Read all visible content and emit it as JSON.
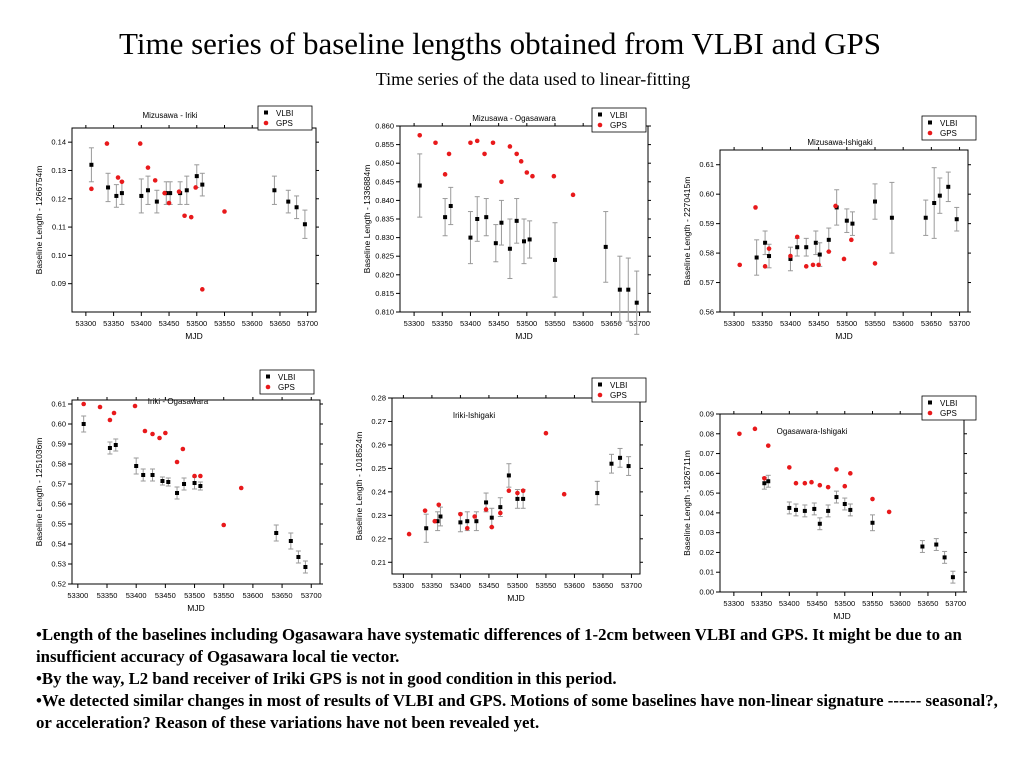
{
  "slide": {
    "title": "Time series of baseline lengths obtained from VLBI and GPS",
    "subtitle": "Time series of the data used to linear-fitting"
  },
  "bullets": [
    "•Length of the baselines including Ogasawara have systematic differences of 1-2cm between VLBI and GPS. It might be due to an insufficient accuracy of Ogasawara local tie vector.",
    "•By the way, L2 band receiver of Iriki GPS is not in good condition in this period.",
    "•We detected similar changes in most of results of VLBI and GPS. Motions of some baselines have non-linear signature ------ seasonal?, or acceleration? Reason of these variations have not been revealed yet."
  ],
  "colors": {
    "vlbi": "#000000",
    "gps": "#e8191b",
    "errorbar": "#9a9a9a"
  },
  "chart_data": [
    {
      "type": "scatter",
      "title": "Mizusawa - Iriki",
      "xlabel": "MJD",
      "ylabel": "Baseline Length - 1266754m",
      "xlim": [
        53275,
        53715
      ],
      "ylim": [
        0.08,
        0.145
      ],
      "xticks": [
        53300,
        53350,
        53400,
        53450,
        53500,
        53550,
        53600,
        53650,
        53700
      ],
      "yticks": [
        0.09,
        0.1,
        0.11,
        0.12,
        0.13,
        0.14
      ],
      "ytick_decimals": 2,
      "legend": [
        "VLBI",
        "GPS"
      ],
      "series": [
        {
          "name": "VLBI",
          "marker": "square",
          "x": [
            53310,
            53340,
            53355,
            53365,
            53400,
            53412,
            53428,
            53445,
            53452,
            53470,
            53482,
            53500,
            53510,
            53640,
            53665,
            53680,
            53695
          ],
          "y": [
            0.132,
            0.124,
            0.121,
            0.122,
            0.121,
            0.123,
            0.119,
            0.122,
            0.122,
            0.122,
            0.123,
            0.128,
            0.125,
            0.123,
            0.119,
            0.117,
            0.111
          ],
          "err": [
            0.006,
            0.005,
            0.004,
            0.004,
            0.006,
            0.005,
            0.004,
            0.004,
            0.004,
            0.004,
            0.005,
            0.004,
            0.004,
            0.005,
            0.004,
            0.004,
            0.005
          ]
        },
        {
          "name": "GPS",
          "marker": "circle",
          "x": [
            53310,
            53338,
            53358,
            53365,
            53398,
            53412,
            53425,
            53442,
            53450,
            53468,
            53478,
            53490,
            53498,
            53510,
            53550
          ],
          "y": [
            0.1235,
            0.1395,
            0.1275,
            0.126,
            0.1395,
            0.131,
            0.1265,
            0.122,
            0.1185,
            0.1225,
            0.114,
            0.1135,
            0.124,
            0.088,
            0.1155
          ]
        }
      ]
    },
    {
      "type": "scatter",
      "title": "Mizusawa - Ogasawara",
      "xlabel": "MJD",
      "ylabel": "Baseline Length - 1336884m",
      "xlim": [
        53275,
        53715
      ],
      "ylim": [
        0.81,
        0.86
      ],
      "xticks": [
        53300,
        53350,
        53400,
        53450,
        53500,
        53550,
        53600,
        53650,
        53700
      ],
      "yticks": [
        0.81,
        0.815,
        0.82,
        0.825,
        0.83,
        0.835,
        0.84,
        0.845,
        0.85,
        0.855,
        0.86
      ],
      "ytick_decimals": 3,
      "legend": [
        "VLBI",
        "GPS"
      ],
      "series": [
        {
          "name": "VLBI",
          "marker": "square",
          "x": [
            53310,
            53355,
            53365,
            53400,
            53412,
            53428,
            53445,
            53455,
            53470,
            53482,
            53495,
            53505,
            53550,
            53640,
            53665,
            53680,
            53695
          ],
          "y": [
            0.844,
            0.8355,
            0.8385,
            0.83,
            0.835,
            0.8355,
            0.8285,
            0.834,
            0.827,
            0.8345,
            0.829,
            0.8295,
            0.824,
            0.8275,
            0.816,
            0.816,
            0.8125
          ],
          "err": [
            0.0085,
            0.005,
            0.005,
            0.007,
            0.006,
            0.005,
            0.005,
            0.006,
            0.008,
            0.006,
            0.006,
            0.005,
            0.01,
            0.0095,
            0.009,
            0.0085,
            0.0085
          ]
        },
        {
          "name": "GPS",
          "marker": "circle",
          "x": [
            53310,
            53338,
            53355,
            53362,
            53400,
            53412,
            53425,
            53440,
            53455,
            53470,
            53482,
            53490,
            53500,
            53510,
            53548,
            53582
          ],
          "y": [
            0.8575,
            0.8555,
            0.847,
            0.8525,
            0.8555,
            0.856,
            0.8525,
            0.8555,
            0.845,
            0.8545,
            0.8525,
            0.8505,
            0.8475,
            0.8465,
            0.8465,
            0.8415
          ]
        }
      ]
    },
    {
      "type": "scatter",
      "title": "Mizusawa-Ishigaki",
      "xlabel": "MJD",
      "ylabel": "Baseline Length - 2270415m",
      "xlim": [
        53275,
        53715
      ],
      "ylim": [
        0.56,
        0.615
      ],
      "xticks": [
        53300,
        53350,
        53400,
        53450,
        53500,
        53550,
        53600,
        53650,
        53700
      ],
      "yticks": [
        0.56,
        0.57,
        0.58,
        0.59,
        0.6,
        0.61
      ],
      "ytick_decimals": 2,
      "legend": [
        "VLBI",
        "GPS"
      ],
      "series": [
        {
          "name": "VLBI",
          "marker": "square",
          "x": [
            53340,
            53355,
            53362,
            53400,
            53412,
            53428,
            53445,
            53452,
            53468,
            53482,
            53500,
            53510,
            53550,
            53580,
            53640,
            53655,
            53665,
            53680,
            53695
          ],
          "y": [
            0.5785,
            0.5835,
            0.579,
            0.578,
            0.582,
            0.582,
            0.5835,
            0.5795,
            0.5845,
            0.5955,
            0.591,
            0.59,
            0.5975,
            0.592,
            0.592,
            0.597,
            0.5995,
            0.6025,
            0.5915
          ],
          "err": [
            0.006,
            0.004,
            0.004,
            0.004,
            0.003,
            0.003,
            0.004,
            0.004,
            0.004,
            0.006,
            0.004,
            0.004,
            0.006,
            0.012,
            0.006,
            0.012,
            0.006,
            0.005,
            0.004
          ]
        },
        {
          "name": "GPS",
          "marker": "circle",
          "x": [
            53310,
            53338,
            53355,
            53362,
            53400,
            53412,
            53428,
            53440,
            53450,
            53468,
            53480,
            53495,
            53508,
            53550
          ],
          "y": [
            0.576,
            0.5955,
            0.5755,
            0.5815,
            0.579,
            0.5855,
            0.5755,
            0.576,
            0.576,
            0.5805,
            0.596,
            0.578,
            0.5845,
            0.5765
          ]
        }
      ]
    },
    {
      "type": "scatter",
      "title": "Iriki - Ogasawara",
      "xlabel": "MJD",
      "ylabel": "Baseline Length - 1251036m",
      "xlim": [
        53290,
        53715
      ],
      "ylim": [
        0.52,
        0.612
      ],
      "xticks": [
        53300,
        53350,
        53400,
        53450,
        53500,
        53550,
        53600,
        53650,
        53700
      ],
      "yticks": [
        0.52,
        0.53,
        0.54,
        0.55,
        0.56,
        0.57,
        0.58,
        0.59,
        0.6,
        0.61
      ],
      "ytick_decimals": 2,
      "legend": [
        "VLBI",
        "GPS"
      ],
      "series": [
        {
          "name": "VLBI",
          "marker": "square",
          "x": [
            53310,
            53355,
            53365,
            53400,
            53412,
            53428,
            53445,
            53455,
            53470,
            53482,
            53500,
            53510,
            53640,
            53665,
            53678,
            53690
          ],
          "y": [
            0.6,
            0.588,
            0.5895,
            0.579,
            0.5745,
            0.5745,
            0.5715,
            0.571,
            0.5655,
            0.57,
            0.5705,
            0.569,
            0.5455,
            0.5415,
            0.5335,
            0.5285
          ],
          "err": [
            0.004,
            0.003,
            0.003,
            0.004,
            0.003,
            0.003,
            0.002,
            0.002,
            0.003,
            0.003,
            0.003,
            0.002,
            0.004,
            0.004,
            0.003,
            0.003
          ]
        },
        {
          "name": "GPS",
          "marker": "circle",
          "x": [
            53310,
            53338,
            53355,
            53362,
            53398,
            53415,
            53428,
            53440,
            53450,
            53470,
            53480,
            53500,
            53510,
            53550,
            53580
          ],
          "y": [
            0.61,
            0.6085,
            0.602,
            0.6055,
            0.609,
            0.5965,
            0.595,
            0.593,
            0.5955,
            0.581,
            0.5875,
            0.574,
            0.574,
            0.5495,
            0.568
          ]
        }
      ]
    },
    {
      "type": "scatter",
      "title": "Iriki-Ishigaki",
      "xlabel": "MJD",
      "ylabel": "Baseline Length - 1018524m",
      "xlim": [
        53280,
        53715
      ],
      "ylim": [
        0.205,
        0.28
      ],
      "xticks": [
        53300,
        53350,
        53400,
        53450,
        53500,
        53550,
        53600,
        53650,
        53700
      ],
      "yticks": [
        0.21,
        0.22,
        0.23,
        0.24,
        0.25,
        0.26,
        0.27,
        0.28
      ],
      "ytick_decimals": 2,
      "legend": [
        "VLBI",
        "GPS"
      ],
      "series": [
        {
          "name": "VLBI",
          "marker": "square",
          "x": [
            53340,
            53360,
            53365,
            53400,
            53412,
            53428,
            53445,
            53455,
            53470,
            53485,
            53500,
            53510,
            53640,
            53665,
            53680,
            53695
          ],
          "y": [
            0.2245,
            0.2275,
            0.2295,
            0.227,
            0.2275,
            0.2275,
            0.2355,
            0.229,
            0.2335,
            0.247,
            0.237,
            0.237,
            0.2395,
            0.252,
            0.2545,
            0.251
          ],
          "err": [
            0.006,
            0.004,
            0.004,
            0.004,
            0.004,
            0.004,
            0.004,
            0.004,
            0.004,
            0.005,
            0.004,
            0.004,
            0.005,
            0.004,
            0.004,
            0.004
          ]
        },
        {
          "name": "GPS",
          "marker": "circle",
          "x": [
            53310,
            53338,
            53355,
            53362,
            53400,
            53412,
            53425,
            53445,
            53455,
            53470,
            53485,
            53500,
            53510,
            53550,
            53582
          ],
          "y": [
            0.222,
            0.232,
            0.2275,
            0.2345,
            0.2305,
            0.2245,
            0.2295,
            0.2325,
            0.225,
            0.231,
            0.2405,
            0.2395,
            0.2405,
            0.265,
            0.239
          ]
        }
      ]
    },
    {
      "type": "scatter",
      "title": "Ogasawara-Ishigaki",
      "xlabel": "MJD",
      "ylabel": "Baseline Length -1826711m",
      "xlim": [
        53275,
        53715
      ],
      "ylim": [
        0.0,
        0.09
      ],
      "xticks": [
        53300,
        53350,
        53400,
        53450,
        53500,
        53550,
        53600,
        53650,
        53700
      ],
      "yticks": [
        0.0,
        0.01,
        0.02,
        0.03,
        0.04,
        0.05,
        0.06,
        0.07,
        0.08,
        0.09
      ],
      "ytick_decimals": 2,
      "legend": [
        "VLBI",
        "GPS"
      ],
      "series": [
        {
          "name": "VLBI",
          "marker": "square",
          "x": [
            53355,
            53362,
            53400,
            53412,
            53428,
            53445,
            53455,
            53470,
            53485,
            53500,
            53510,
            53550,
            53640,
            53665,
            53680,
            53695
          ],
          "y": [
            0.055,
            0.056,
            0.0425,
            0.0415,
            0.041,
            0.042,
            0.0345,
            0.041,
            0.048,
            0.0445,
            0.0415,
            0.035,
            0.023,
            0.024,
            0.0175,
            0.0075
          ],
          "err": [
            0.003,
            0.003,
            0.003,
            0.003,
            0.003,
            0.003,
            0.003,
            0.003,
            0.003,
            0.003,
            0.003,
            0.004,
            0.003,
            0.003,
            0.003,
            0.003
          ]
        },
        {
          "name": "GPS",
          "marker": "circle",
          "x": [
            53310,
            53338,
            53355,
            53362,
            53400,
            53412,
            53428,
            53440,
            53455,
            53470,
            53485,
            53500,
            53510,
            53550,
            53580
          ],
          "y": [
            0.08,
            0.0825,
            0.0575,
            0.074,
            0.063,
            0.055,
            0.055,
            0.0555,
            0.054,
            0.053,
            0.062,
            0.0535,
            0.06,
            0.047,
            0.0405
          ]
        }
      ]
    }
  ]
}
